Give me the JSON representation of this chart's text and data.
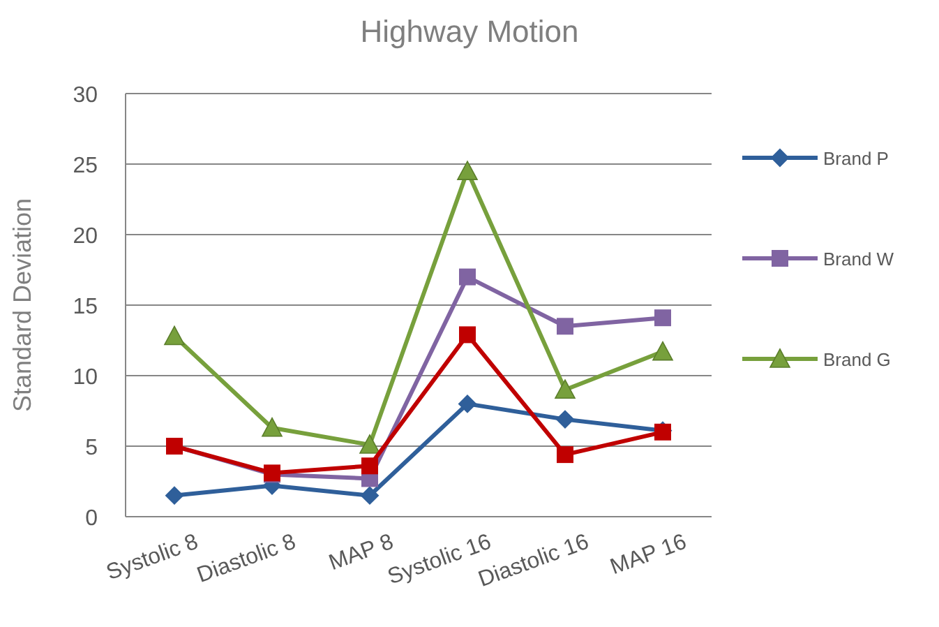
{
  "chart_data": {
    "type": "line",
    "title": "Highway Motion",
    "ylabel": "Standard Deviation",
    "categories": [
      "Systolic 8",
      "Diastolic 8",
      "MAP 8",
      "Systolic 16",
      "Diastolic 16",
      "MAP 16"
    ],
    "ylim": [
      0,
      30
    ],
    "yticks": [
      0,
      5,
      10,
      15,
      20,
      25,
      30
    ],
    "grid": "y",
    "legend": "right",
    "series": [
      {
        "name": "Brand P",
        "color": "#2f5f9a",
        "marker": "diamond",
        "values": [
          1.5,
          2.2,
          1.5,
          8.0,
          6.9,
          6.1
        ]
      },
      {
        "name": "Brand W",
        "color": "#8064a2",
        "marker": "square",
        "values": [
          5.0,
          3.0,
          2.7,
          17.0,
          13.5,
          14.1
        ]
      },
      {
        "name": "Brand G",
        "color": "#77a03c",
        "marker": "triangle",
        "values": [
          12.8,
          6.3,
          5.1,
          24.5,
          9.0,
          11.7
        ]
      },
      {
        "color": "#c00000",
        "marker": "square",
        "values": [
          5.0,
          3.1,
          3.6,
          12.9,
          4.4,
          6.0
        ]
      }
    ]
  }
}
